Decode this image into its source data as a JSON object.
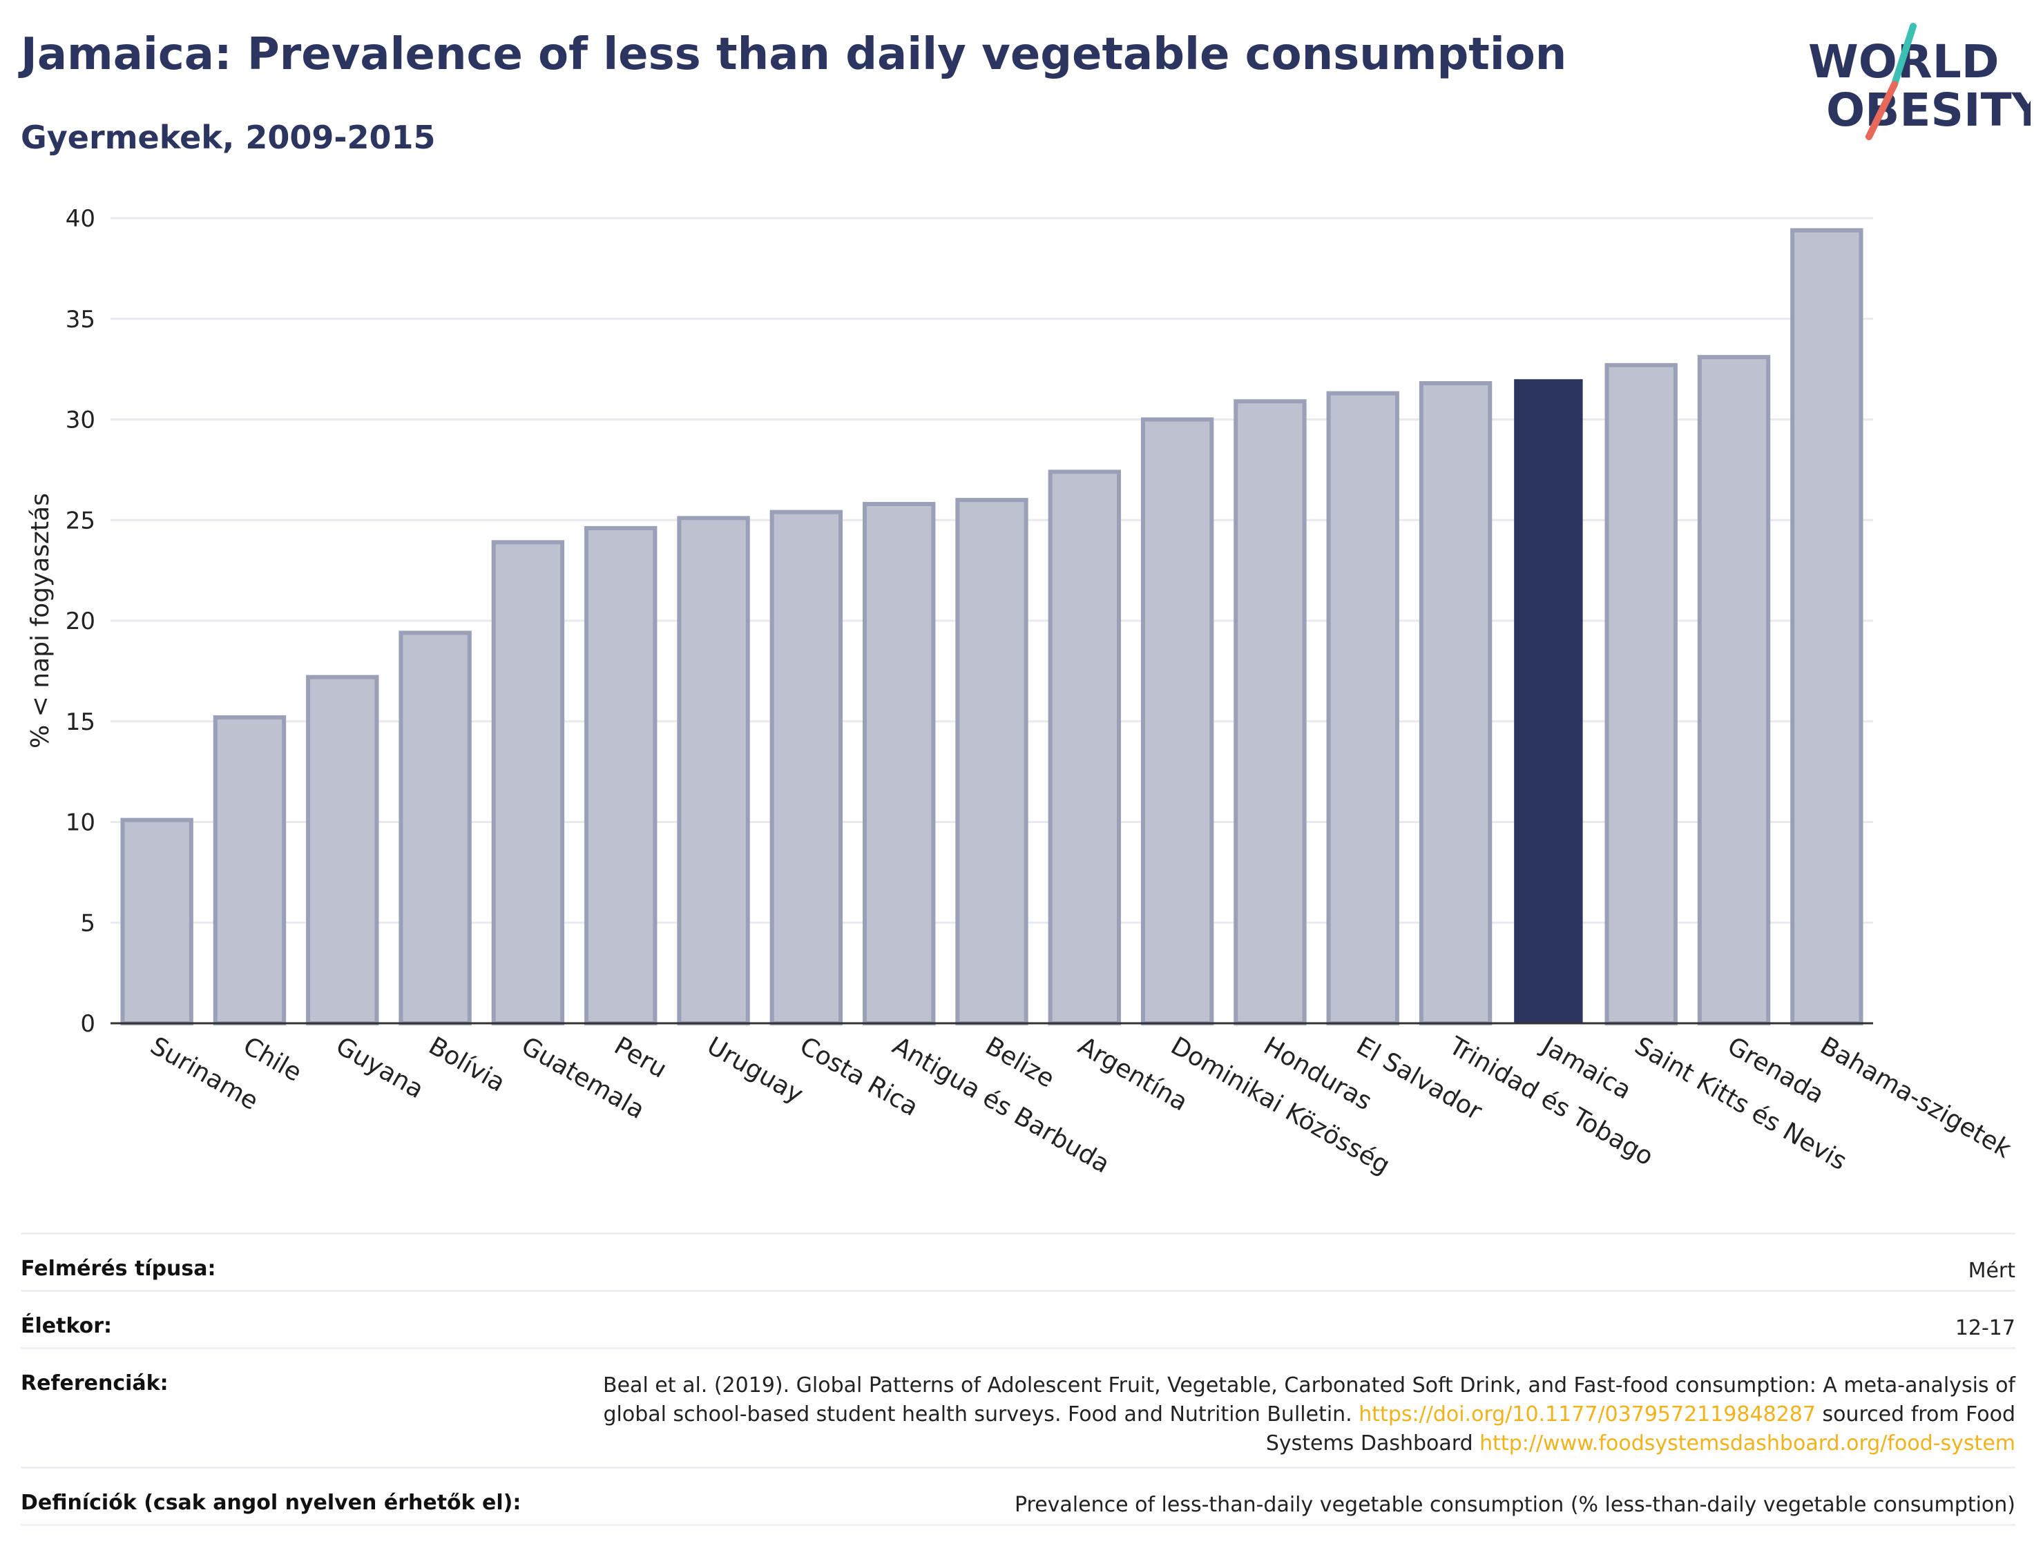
{
  "header": {
    "title": "Jamaica: Prevalence of less than daily vegetable consumption",
    "subtitle": "Gyermekek, 2009-2015",
    "logo_line1": "WORLD",
    "logo_line2": "OBESITY"
  },
  "colors": {
    "title": "#2b3560",
    "bar_default": "#bdc1d0",
    "bar_default_stroke": "#9aa0b8",
    "bar_highlight": "#2b3560",
    "logo_accent_red": "#e8685a",
    "logo_accent_teal": "#3cc0b4",
    "link": "#f2b21c"
  },
  "chart_data": {
    "type": "bar",
    "ylabel": "% < napi fogyasztás",
    "ylim": [
      0,
      40
    ],
    "yticks": [
      0,
      5,
      10,
      15,
      20,
      25,
      30,
      35,
      40
    ],
    "grid": true,
    "categories": [
      "Suriname",
      "Chile",
      "Guyana",
      "Bolívia",
      "Guatemala",
      "Peru",
      "Uruguay",
      "Costa Rica",
      "Antigua és Barbuda",
      "Belize",
      "Argentína",
      "Dominikai Közösség",
      "Honduras",
      "El Salvador",
      "Trinidad és Tobago",
      "Jamaica",
      "Saint Kitts és Nevis",
      "Grenada",
      "Bahama-szigetek"
    ],
    "values": [
      10.1,
      15.2,
      17.2,
      19.4,
      23.9,
      24.6,
      25.1,
      25.4,
      25.8,
      26.0,
      27.4,
      30.0,
      30.9,
      31.3,
      31.8,
      32.0,
      32.7,
      33.1,
      39.4
    ],
    "highlight": "Jamaica"
  },
  "meta": {
    "survey_label": "Felmérés típusa:",
    "survey_value": "Mért",
    "age_label": "Életkor:",
    "age_value": "12-17",
    "ref_label": "Referenciák:",
    "ref_text1": "Beal et al. (2019). Global Patterns of Adolescent Fruit, Vegetable, Carbonated Soft Drink, and Fast-food consumption: A meta-analysis of global school-based student health surveys. Food and Nutrition Bulletin.",
    "ref_link1": "https://doi.org/10.1177/0379572119848287",
    "ref_text2": "sourced from Food Systems Dashboard",
    "ref_link2": "http://www.foodsystemsdashboard.org/food-system",
    "def_label": "Definíciók (csak angol nyelven érhetők el):",
    "def_value": "Prevalence of less-than-daily vegetable consumption (% less-than-daily vegetable consumption)"
  }
}
